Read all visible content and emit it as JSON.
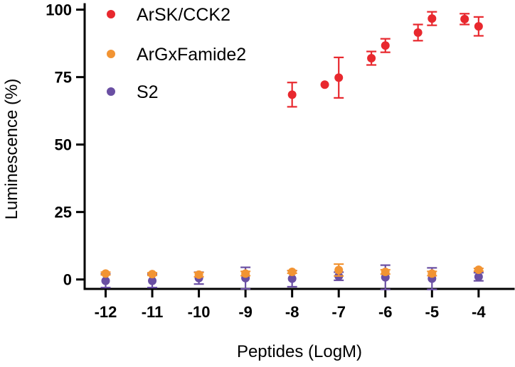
{
  "chart_data": {
    "type": "scatter",
    "xlabel": "Peptides (LogM)",
    "ylabel": "Luminescence (%)",
    "xlim": [
      -12.45,
      -3.25
    ],
    "ylim": [
      -3.5,
      102
    ],
    "x_ticks": [
      -12,
      -11,
      -10,
      -9,
      -8,
      -7,
      -6,
      -5,
      -4
    ],
    "x_tick_labels": [
      "-12",
      "-11",
      "-10",
      "-9",
      "-8",
      "-7",
      "-6",
      "-5",
      "-4"
    ],
    "y_ticks": [
      0,
      25,
      50,
      75,
      100
    ],
    "y_tick_labels": [
      "0",
      "25",
      "50",
      "75",
      "100"
    ],
    "grid": false,
    "legend_position": "top-left",
    "series": [
      {
        "name": "ArSK/CCK2",
        "color": "#e8282e",
        "points": [
          {
            "x": -8,
            "y": 68.5,
            "err": 4.5
          },
          {
            "x": -7.3,
            "y": 72.2,
            "err": 0
          },
          {
            "x": -7,
            "y": 74.8,
            "err": 7.5
          },
          {
            "x": -6.3,
            "y": 82,
            "err": 2.5
          },
          {
            "x": -6,
            "y": 86.7,
            "err": 2.5
          },
          {
            "x": -5.3,
            "y": 91.5,
            "err": 3
          },
          {
            "x": -5,
            "y": 96.7,
            "err": 2.5
          },
          {
            "x": -4.3,
            "y": 96.5,
            "err": 2
          },
          {
            "x": -4,
            "y": 93.8,
            "err": 3.5
          }
        ]
      },
      {
        "name": "ArGxFamide2",
        "color": "#f29433",
        "points": [
          {
            "x": -12,
            "y": 2.2,
            "err": 0.5
          },
          {
            "x": -11,
            "y": 2.0,
            "err": 0.5
          },
          {
            "x": -10,
            "y": 1.8,
            "err": 0.8
          },
          {
            "x": -9,
            "y": 2.2,
            "err": 0.8
          },
          {
            "x": -8,
            "y": 2.8,
            "err": 0.5
          },
          {
            "x": -7,
            "y": 3.5,
            "err": 2.2
          },
          {
            "x": -6,
            "y": 2.8,
            "err": 0.8
          },
          {
            "x": -5,
            "y": 2.2,
            "err": 0.8
          },
          {
            "x": -4,
            "y": 3.6,
            "err": 0.5
          }
        ]
      },
      {
        "name": "S2",
        "color": "#6a4fa3",
        "points": [
          {
            "x": -12,
            "y": -0.5,
            "err": 2.5
          },
          {
            "x": -11,
            "y": -0.5,
            "err": 2.5
          },
          {
            "x": -10,
            "y": 0.5,
            "err": 2.2
          },
          {
            "x": -9,
            "y": 0.5,
            "err": 4.0
          },
          {
            "x": -8,
            "y": 0.3,
            "err": 3.0
          },
          {
            "x": -7,
            "y": 1.2,
            "err": 1.5
          },
          {
            "x": -6,
            "y": 0.8,
            "err": 4.5
          },
          {
            "x": -5,
            "y": 0.3,
            "err": 4.0
          },
          {
            "x": -4,
            "y": 1.0,
            "err": 1.5
          }
        ]
      }
    ]
  }
}
